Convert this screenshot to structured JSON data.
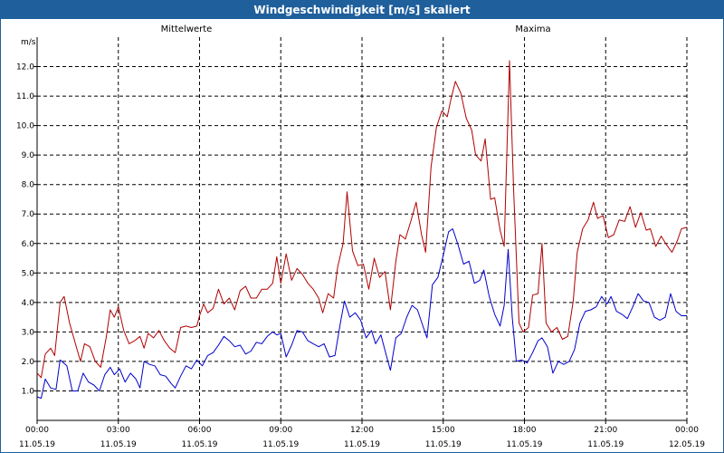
{
  "window": {
    "title": "Windgeschwindigkeit [m/s] skaliert"
  },
  "colors": {
    "mean": "#0000cc",
    "max": "#b00000",
    "grid": "#000000",
    "titlebar": "#1f5f9c"
  },
  "chart_data": {
    "type": "line",
    "title": "Windgeschwindigkeit [m/s] skaliert",
    "ylabel": "m/s",
    "xlabel": "",
    "ylim": [
      0,
      13
    ],
    "xlim_hours": [
      0,
      24
    ],
    "grid": true,
    "legend": [
      {
        "name": "Mittelwerte",
        "color": "#0000cc"
      },
      {
        "name": "Maxima",
        "color": "#b00000"
      }
    ],
    "y_ticks": [
      "1.0",
      "2.0",
      "3.0",
      "4.0",
      "5.0",
      "6.0",
      "7.0",
      "8.0",
      "9.0",
      "10.0",
      "11.0",
      "12.0"
    ],
    "x_ticks": [
      {
        "time": "00:00",
        "date": "11.05.19",
        "hour": 0
      },
      {
        "time": "03:00",
        "date": "11.05.19",
        "hour": 3
      },
      {
        "time": "06:00",
        "date": "11.05.19",
        "hour": 6
      },
      {
        "time": "09:00",
        "date": "11.05.19",
        "hour": 9
      },
      {
        "time": "12:00",
        "date": "11.05.19",
        "hour": 12
      },
      {
        "time": "15:00",
        "date": "11.05.19",
        "hour": 15
      },
      {
        "time": "18:00",
        "date": "11.05.19",
        "hour": 18
      },
      {
        "time": "21:00",
        "date": "11.05.19",
        "hour": 21
      },
      {
        "time": "00:00",
        "date": "12.05.19",
        "hour": 24
      }
    ],
    "series": [
      {
        "name": "Mittelwerte",
        "color": "#0000cc",
        "points": [
          [
            0,
            0.8
          ],
          [
            0.15,
            0.75
          ],
          [
            0.3,
            1.4
          ],
          [
            0.5,
            1.1
          ],
          [
            0.7,
            1.05
          ],
          [
            0.85,
            2.05
          ],
          [
            1.1,
            1.85
          ],
          [
            1.3,
            1.0
          ],
          [
            1.5,
            1.0
          ],
          [
            1.7,
            1.6
          ],
          [
            1.9,
            1.3
          ],
          [
            2.1,
            1.2
          ],
          [
            2.3,
            1.0
          ],
          [
            2.5,
            1.55
          ],
          [
            2.7,
            1.8
          ],
          [
            2.85,
            1.55
          ],
          [
            3.05,
            1.75
          ],
          [
            3.25,
            1.3
          ],
          [
            3.45,
            1.6
          ],
          [
            3.65,
            1.4
          ],
          [
            3.8,
            1.1
          ],
          [
            3.95,
            2.0
          ],
          [
            4.15,
            1.9
          ],
          [
            4.35,
            1.85
          ],
          [
            4.55,
            1.55
          ],
          [
            4.75,
            1.5
          ],
          [
            4.95,
            1.25
          ],
          [
            5.1,
            1.1
          ],
          [
            5.3,
            1.5
          ],
          [
            5.5,
            1.85
          ],
          [
            5.7,
            1.75
          ],
          [
            5.9,
            2.05
          ],
          [
            6.1,
            1.85
          ],
          [
            6.3,
            2.2
          ],
          [
            6.5,
            2.3
          ],
          [
            6.7,
            2.55
          ],
          [
            6.9,
            2.85
          ],
          [
            7.1,
            2.7
          ],
          [
            7.3,
            2.5
          ],
          [
            7.5,
            2.55
          ],
          [
            7.7,
            2.25
          ],
          [
            7.9,
            2.35
          ],
          [
            8.1,
            2.65
          ],
          [
            8.3,
            2.6
          ],
          [
            8.5,
            2.85
          ],
          [
            8.7,
            3.0
          ],
          [
            8.85,
            2.9
          ],
          [
            9.0,
            2.95
          ],
          [
            9.2,
            2.15
          ],
          [
            9.4,
            2.55
          ],
          [
            9.6,
            3.05
          ],
          [
            9.8,
            3.0
          ],
          [
            10.0,
            2.7
          ],
          [
            10.2,
            2.6
          ],
          [
            10.4,
            2.5
          ],
          [
            10.6,
            2.6
          ],
          [
            10.8,
            2.15
          ],
          [
            11.0,
            2.2
          ],
          [
            11.2,
            3.3
          ],
          [
            11.35,
            4.05
          ],
          [
            11.55,
            3.5
          ],
          [
            11.75,
            3.65
          ],
          [
            11.95,
            3.4
          ],
          [
            12.15,
            2.8
          ],
          [
            12.35,
            3.05
          ],
          [
            12.5,
            2.6
          ],
          [
            12.7,
            2.9
          ],
          [
            12.9,
            2.2
          ],
          [
            13.05,
            1.7
          ],
          [
            13.25,
            2.8
          ],
          [
            13.45,
            2.95
          ],
          [
            13.65,
            3.5
          ],
          [
            13.85,
            3.9
          ],
          [
            14.05,
            3.75
          ],
          [
            14.25,
            3.2
          ],
          [
            14.4,
            2.8
          ],
          [
            14.6,
            4.6
          ],
          [
            14.8,
            4.85
          ],
          [
            15.0,
            5.6
          ],
          [
            15.2,
            6.4
          ],
          [
            15.35,
            6.5
          ],
          [
            15.55,
            5.95
          ],
          [
            15.75,
            5.3
          ],
          [
            15.95,
            5.4
          ],
          [
            16.15,
            4.65
          ],
          [
            16.35,
            4.75
          ],
          [
            16.5,
            5.1
          ],
          [
            16.7,
            4.2
          ],
          [
            16.9,
            3.6
          ],
          [
            17.1,
            3.2
          ],
          [
            17.25,
            3.9
          ],
          [
            17.4,
            5.8
          ],
          [
            17.55,
            3.5
          ],
          [
            17.7,
            2.0
          ],
          [
            17.9,
            2.05
          ],
          [
            18.1,
            1.95
          ],
          [
            18.3,
            2.3
          ],
          [
            18.5,
            2.7
          ],
          [
            18.65,
            2.8
          ],
          [
            18.85,
            2.5
          ],
          [
            19.05,
            1.6
          ],
          [
            19.25,
            2.0
          ],
          [
            19.45,
            1.9
          ],
          [
            19.65,
            2.0
          ],
          [
            19.85,
            2.4
          ],
          [
            20.05,
            3.3
          ],
          [
            20.25,
            3.7
          ],
          [
            20.45,
            3.75
          ],
          [
            20.65,
            3.85
          ],
          [
            20.85,
            4.2
          ],
          [
            21.05,
            3.95
          ],
          [
            21.2,
            4.2
          ],
          [
            21.4,
            3.7
          ],
          [
            21.6,
            3.6
          ],
          [
            21.8,
            3.45
          ],
          [
            22.0,
            3.85
          ],
          [
            22.2,
            4.3
          ],
          [
            22.4,
            4.05
          ],
          [
            22.6,
            4.0
          ],
          [
            22.8,
            3.5
          ],
          [
            23.0,
            3.4
          ],
          [
            23.2,
            3.5
          ],
          [
            23.4,
            4.3
          ],
          [
            23.6,
            3.7
          ],
          [
            23.8,
            3.55
          ],
          [
            24.0,
            3.55
          ]
        ]
      },
      {
        "name": "Maxima",
        "color": "#b00000",
        "points": [
          [
            0,
            1.6
          ],
          [
            0.15,
            1.45
          ],
          [
            0.3,
            2.25
          ],
          [
            0.5,
            2.45
          ],
          [
            0.65,
            2.2
          ],
          [
            0.85,
            4.0
          ],
          [
            1.0,
            4.2
          ],
          [
            1.2,
            3.3
          ],
          [
            1.4,
            2.65
          ],
          [
            1.6,
            2.0
          ],
          [
            1.75,
            2.6
          ],
          [
            1.95,
            2.5
          ],
          [
            2.15,
            2.0
          ],
          [
            2.35,
            1.8
          ],
          [
            2.55,
            2.8
          ],
          [
            2.7,
            3.75
          ],
          [
            2.85,
            3.5
          ],
          [
            3.0,
            3.85
          ],
          [
            3.2,
            3.05
          ],
          [
            3.4,
            2.6
          ],
          [
            3.6,
            2.7
          ],
          [
            3.8,
            2.85
          ],
          [
            3.95,
            2.45
          ],
          [
            4.1,
            2.95
          ],
          [
            4.3,
            2.8
          ],
          [
            4.5,
            3.05
          ],
          [
            4.7,
            2.7
          ],
          [
            4.9,
            2.45
          ],
          [
            5.1,
            2.3
          ],
          [
            5.3,
            3.15
          ],
          [
            5.5,
            3.2
          ],
          [
            5.7,
            3.15
          ],
          [
            5.9,
            3.2
          ],
          [
            6.0,
            3.55
          ],
          [
            6.15,
            3.95
          ],
          [
            6.3,
            3.65
          ],
          [
            6.5,
            3.8
          ],
          [
            6.7,
            4.45
          ],
          [
            6.9,
            3.95
          ],
          [
            7.1,
            4.15
          ],
          [
            7.3,
            3.75
          ],
          [
            7.5,
            4.4
          ],
          [
            7.7,
            4.55
          ],
          [
            7.9,
            4.15
          ],
          [
            8.1,
            4.15
          ],
          [
            8.3,
            4.45
          ],
          [
            8.5,
            4.45
          ],
          [
            8.7,
            4.65
          ],
          [
            8.85,
            5.55
          ],
          [
            9.0,
            4.65
          ],
          [
            9.2,
            5.65
          ],
          [
            9.4,
            4.75
          ],
          [
            9.6,
            5.15
          ],
          [
            9.8,
            4.95
          ],
          [
            10.0,
            4.65
          ],
          [
            10.2,
            4.45
          ],
          [
            10.4,
            4.15
          ],
          [
            10.55,
            3.65
          ],
          [
            10.75,
            4.3
          ],
          [
            10.95,
            4.15
          ],
          [
            11.1,
            5.2
          ],
          [
            11.3,
            6.0
          ],
          [
            11.45,
            7.75
          ],
          [
            11.65,
            5.75
          ],
          [
            11.85,
            5.25
          ],
          [
            12.05,
            5.3
          ],
          [
            12.25,
            4.45
          ],
          [
            12.45,
            5.5
          ],
          [
            12.65,
            4.85
          ],
          [
            12.85,
            5.05
          ],
          [
            13.05,
            3.75
          ],
          [
            13.25,
            5.4
          ],
          [
            13.4,
            6.3
          ],
          [
            13.6,
            6.15
          ],
          [
            13.8,
            6.75
          ],
          [
            14.0,
            7.4
          ],
          [
            14.2,
            6.3
          ],
          [
            14.35,
            5.7
          ],
          [
            14.55,
            8.6
          ],
          [
            14.75,
            9.95
          ],
          [
            14.95,
            10.5
          ],
          [
            15.15,
            10.3
          ],
          [
            15.3,
            10.95
          ],
          [
            15.45,
            11.5
          ],
          [
            15.65,
            11.1
          ],
          [
            15.85,
            10.25
          ],
          [
            16.05,
            9.85
          ],
          [
            16.2,
            9.0
          ],
          [
            16.4,
            8.8
          ],
          [
            16.55,
            9.55
          ],
          [
            16.75,
            7.5
          ],
          [
            16.9,
            7.55
          ],
          [
            17.1,
            6.45
          ],
          [
            17.25,
            5.9
          ],
          [
            17.45,
            12.2
          ],
          [
            17.6,
            7.85
          ],
          [
            17.8,
            3.3
          ],
          [
            17.95,
            3.0
          ],
          [
            18.15,
            3.15
          ],
          [
            18.3,
            4.25
          ],
          [
            18.5,
            4.3
          ],
          [
            18.65,
            6.0
          ],
          [
            18.8,
            3.3
          ],
          [
            19.0,
            3.0
          ],
          [
            19.2,
            3.15
          ],
          [
            19.4,
            2.75
          ],
          [
            19.6,
            2.85
          ],
          [
            19.8,
            4.05
          ],
          [
            19.95,
            5.7
          ],
          [
            20.15,
            6.5
          ],
          [
            20.35,
            6.8
          ],
          [
            20.55,
            7.4
          ],
          [
            20.7,
            6.85
          ],
          [
            20.9,
            6.95
          ],
          [
            21.1,
            6.2
          ],
          [
            21.3,
            6.3
          ],
          [
            21.5,
            6.8
          ],
          [
            21.7,
            6.75
          ],
          [
            21.9,
            7.25
          ],
          [
            22.1,
            6.55
          ],
          [
            22.3,
            7.05
          ],
          [
            22.5,
            6.45
          ],
          [
            22.65,
            6.5
          ],
          [
            22.85,
            5.9
          ],
          [
            23.05,
            6.25
          ],
          [
            23.25,
            5.95
          ],
          [
            23.45,
            5.7
          ],
          [
            23.65,
            6.1
          ],
          [
            23.8,
            6.5
          ],
          [
            24.0,
            6.55
          ]
        ]
      }
    ]
  }
}
